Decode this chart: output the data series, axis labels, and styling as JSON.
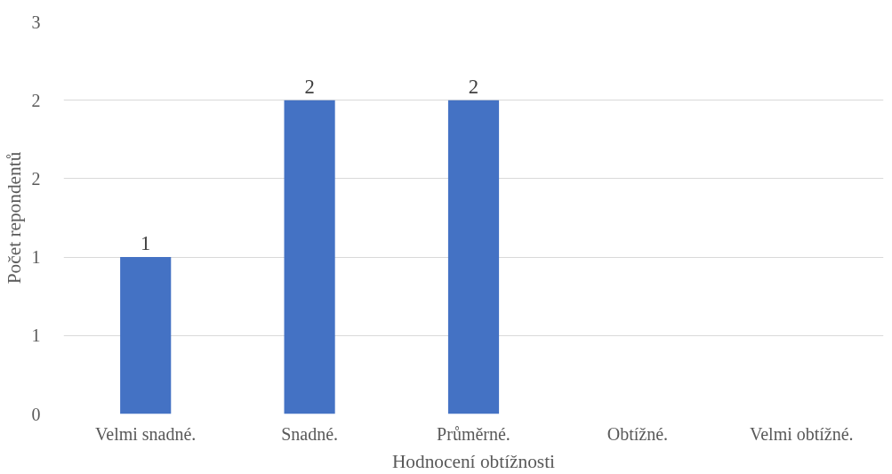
{
  "chart_data": {
    "type": "bar",
    "xlabel": "Hodnocení obtížnosti",
    "ylabel": "Počet repondentů",
    "categories": [
      "Velmi snadné.",
      "Snadné.",
      "Průměrné.",
      "Obtížné.",
      "Velmi obtížné."
    ],
    "values": [
      1,
      2,
      2,
      0,
      0
    ],
    "value_labels": [
      "1",
      "2",
      "2",
      null,
      null
    ],
    "color": "#4472c4",
    "ylim": [
      0,
      2.5
    ],
    "yticks": [
      {
        "value": 0,
        "label": "0"
      },
      {
        "value": 0.5,
        "label": "1"
      },
      {
        "value": 1,
        "label": "1"
      },
      {
        "value": 1.5,
        "label": "2"
      },
      {
        "value": 2,
        "label": "2"
      },
      {
        "value": 2.5,
        "label": "3"
      }
    ],
    "grid": "y"
  }
}
